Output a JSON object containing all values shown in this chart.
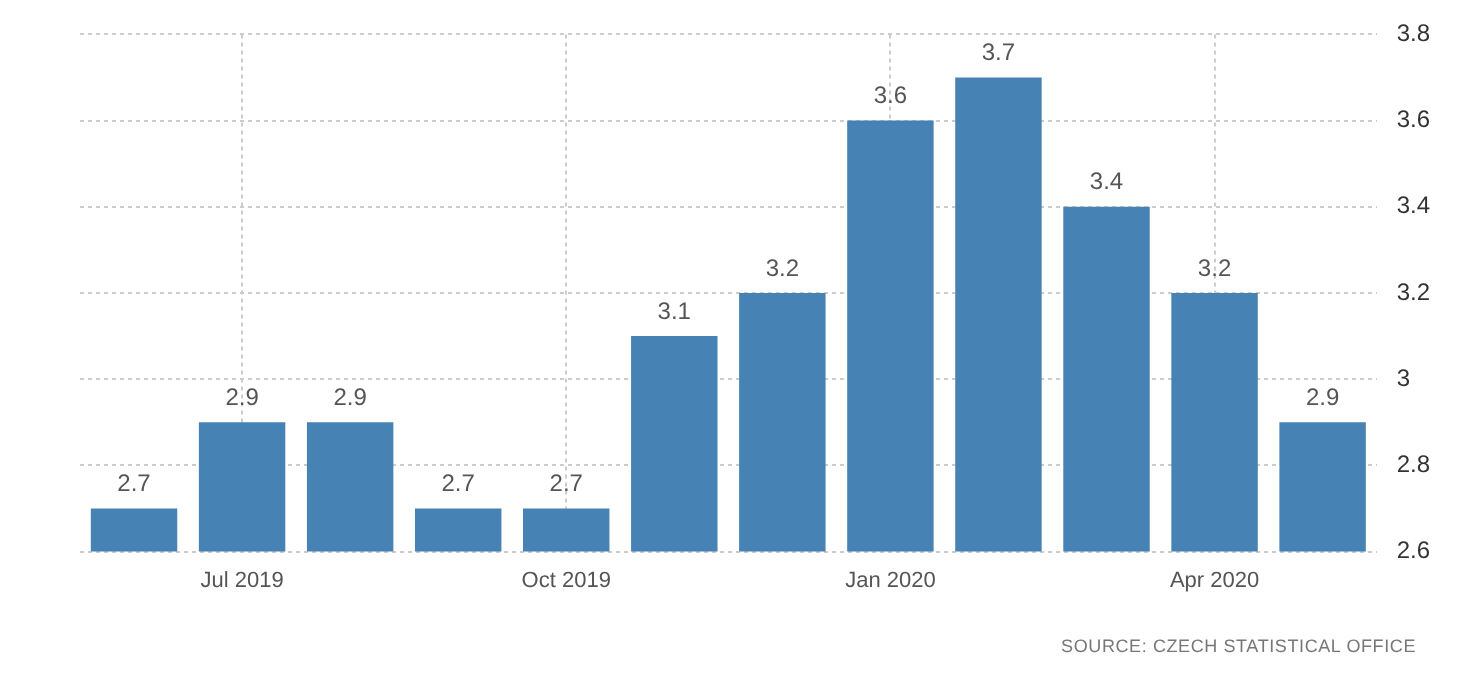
{
  "chart_data": {
    "type": "bar",
    "categories": [
      null,
      "Jul 2019",
      null,
      null,
      "Oct 2019",
      null,
      null,
      "Jan 2020",
      null,
      null,
      "Apr 2020",
      null
    ],
    "values": [
      2.7,
      2.9,
      2.9,
      2.7,
      2.7,
      3.1,
      3.2,
      3.6,
      3.7,
      3.4,
      3.2,
      2.9
    ],
    "color": "#4682b4",
    "ylim": [
      2.6,
      3.8
    ],
    "yticks": [
      2.6,
      2.8,
      3,
      3.2,
      3.4,
      3.6,
      3.8
    ],
    "grid": true,
    "data_labels": true,
    "legend": false,
    "annotations": [
      "SOURCE: CZECH STATISTICAL OFFICE"
    ]
  }
}
